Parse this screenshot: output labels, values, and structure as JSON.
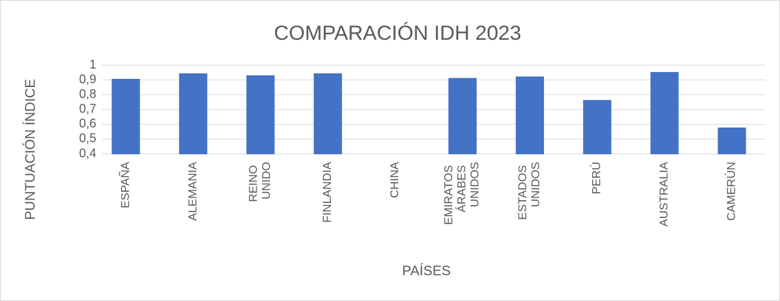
{
  "chart_data": {
    "type": "bar",
    "title": "COMPARACIÓN IDH 2023",
    "x_label": "PAÍSES",
    "y_label": "PUNTUACIÓN ÍNDICE",
    "categories": [
      "ESPAÑA",
      "ALEMANIA",
      "REINO UNIDO",
      "FINLANDIA",
      "CHINA",
      "EMIRATOS ÁRABES UNIDOS",
      "ESTADOS UNIDOS",
      "PERÚ",
      "AUSTRALIA",
      "CAMERÚN"
    ],
    "values": [
      0.905,
      0.942,
      0.929,
      0.942,
      0.4,
      0.911,
      0.921,
      0.762,
      0.951,
      0.576
    ],
    "color": "#4472c4",
    "ylim": [
      0.4,
      1
    ],
    "yticks": [
      {
        "value": 0.4,
        "label": "0,4"
      },
      {
        "value": 0.5,
        "label": "0,5"
      },
      {
        "value": 0.6,
        "label": "0,6"
      },
      {
        "value": 0.7,
        "label": "0,7"
      },
      {
        "value": 0.8,
        "label": "0,8"
      },
      {
        "value": 0.9,
        "label": "0,9"
      },
      1
    ],
    "grid": true
  }
}
